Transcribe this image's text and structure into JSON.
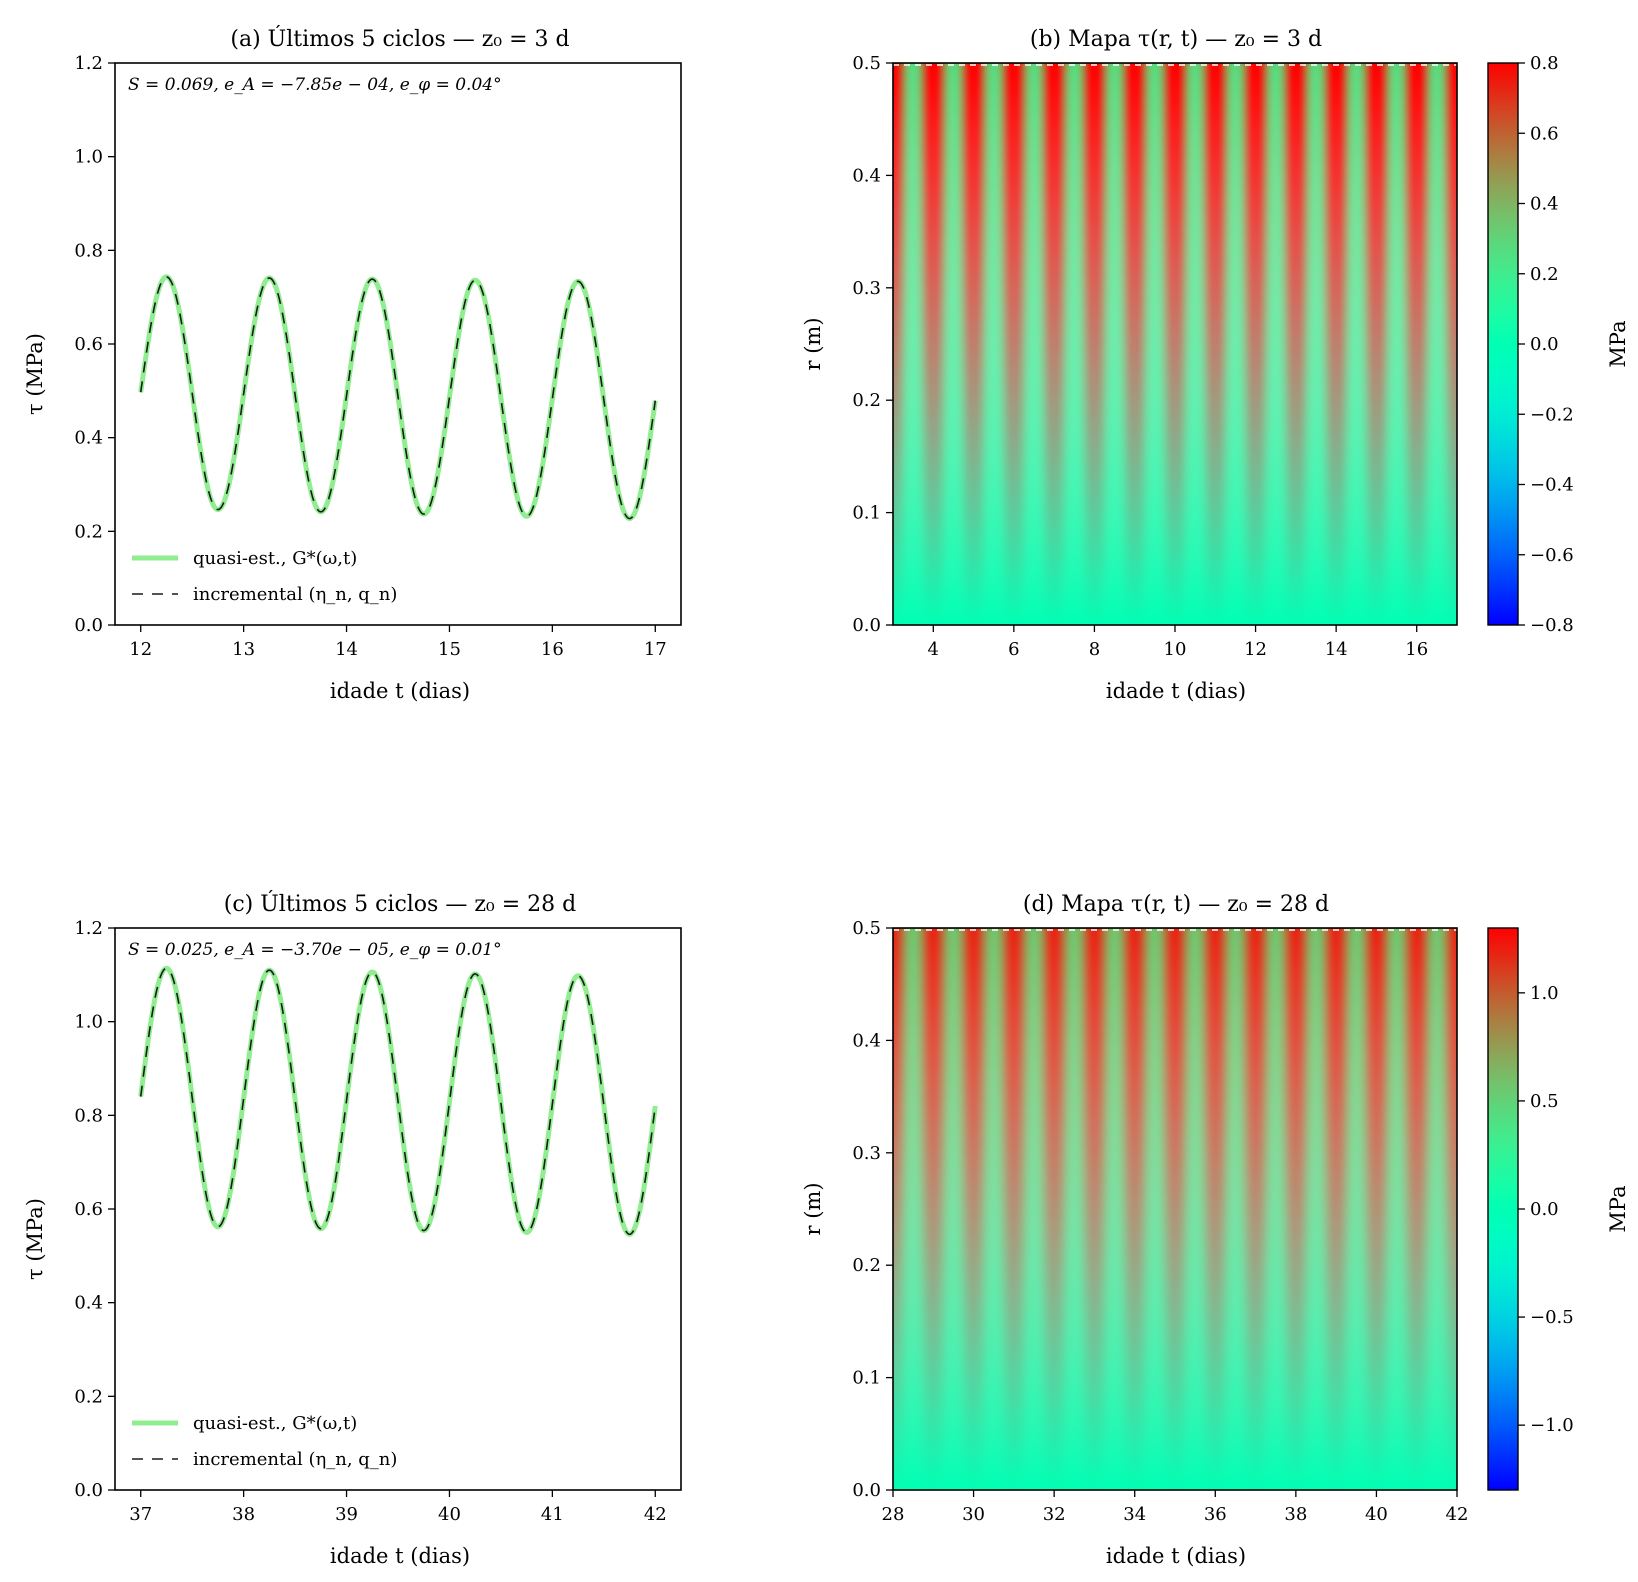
{
  "chart_data": [
    {
      "id": "a",
      "type": "line",
      "title": "(a) Últimos 5 ciclos — z₀ = 3 d",
      "xlabel": "idade t (dias)",
      "ylabel": "τ (MPa)",
      "xlim": [
        11.75,
        17.25
      ],
      "ylim": [
        0.0,
        1.2
      ],
      "xticks": [
        12,
        13,
        14,
        15,
        16,
        17
      ],
      "yticks": [
        0.0,
        0.2,
        0.4,
        0.6,
        0.8,
        1.0,
        1.2
      ],
      "annotation": "S = 0.069, e_A = −7.85e − 04, e_φ = 0.04°",
      "legend_position": "lower-left",
      "signal": {
        "t_start": 12,
        "t_end": 17,
        "period": 1,
        "peak_t": 12.25,
        "amp_start": 0.247,
        "amp_end": 0.253,
        "mean_start": 0.497,
        "mean_end": 0.479
      },
      "series": [
        {
          "name": "quasi-est., G*(ω,t)",
          "color": "#90ee90",
          "style": "solid"
        },
        {
          "name": "incremental (η_n, q_n)",
          "color": "#1a1a1a",
          "style": "dashed"
        }
      ],
      "peaks": [
        [
          12.25,
          0.745
        ],
        [
          13.25,
          0.742
        ],
        [
          14.25,
          0.74
        ],
        [
          15.25,
          0.736
        ],
        [
          16.25,
          0.732
        ]
      ],
      "troughs": [
        [
          12.75,
          0.25
        ],
        [
          13.75,
          0.245
        ],
        [
          14.75,
          0.238
        ],
        [
          15.75,
          0.232
        ],
        [
          16.75,
          0.226
        ]
      ],
      "endpoints": [
        [
          12,
          0.52
        ],
        [
          17,
          0.48
        ]
      ]
    },
    {
      "id": "b",
      "type": "heatmap",
      "title": "(b) Mapa τ(r, t) — z₀ = 3 d",
      "xlabel": "idade t (dias)",
      "ylabel": "r (m)",
      "xlim": [
        3,
        17
      ],
      "ylim": [
        0.0,
        0.5
      ],
      "xticks": [
        4,
        6,
        8,
        10,
        12,
        14,
        16
      ],
      "yticks": [
        0.0,
        0.1,
        0.2,
        0.3,
        0.4,
        0.5
      ],
      "colorbar": {
        "label": "MPa",
        "range": [
          -0.8,
          0.8
        ],
        "ticks": [
          -0.8,
          -0.6,
          -0.4,
          -0.2,
          0.0,
          0.2,
          0.4,
          0.6,
          0.8
        ],
        "colormap": "rainbow"
      },
      "field": {
        "t_start": 3,
        "t_end": 17,
        "period": 1,
        "mean_at_surface": 0.55,
        "amp_at_surface": 0.27,
        "surface_radius": 0.5
      },
      "reference_line": {
        "r": 0.5,
        "style": "dashed",
        "color": "#ffffff"
      }
    },
    {
      "id": "c",
      "type": "line",
      "title": "(c) Últimos 5 ciclos — z₀ = 28 d",
      "xlabel": "idade t (dias)",
      "ylabel": "τ (MPa)",
      "xlim": [
        36.75,
        42.25
      ],
      "ylim": [
        0.0,
        1.2
      ],
      "xticks": [
        37,
        38,
        39,
        40,
        41,
        42
      ],
      "yticks": [
        0.0,
        0.2,
        0.4,
        0.6,
        0.8,
        1.0,
        1.2
      ],
      "annotation": "S = 0.025, e_A = −3.70e − 05, e_φ = 0.01°",
      "legend_position": "lower-left",
      "signal": {
        "t_start": 37,
        "t_end": 42,
        "period": 1,
        "peak_t": 37.25,
        "amp_start": 0.275,
        "amp_end": 0.275,
        "mean_start": 0.84,
        "mean_end": 0.82
      },
      "series": [
        {
          "name": "quasi-est., G*(ω,t)",
          "color": "#90ee90",
          "style": "solid"
        },
        {
          "name": "incremental (η_n, q_n)",
          "color": "#1a1a1a",
          "style": "dashed"
        }
      ],
      "peaks": [
        [
          37.25,
          1.115
        ],
        [
          38.25,
          1.11
        ],
        [
          39.25,
          1.105
        ],
        [
          40.25,
          1.1
        ],
        [
          41.25,
          1.095
        ]
      ],
      "troughs": [
        [
          37.75,
          0.565
        ],
        [
          38.75,
          0.56
        ],
        [
          39.75,
          0.555
        ],
        [
          40.75,
          0.55
        ],
        [
          41.75,
          0.545
        ]
      ],
      "endpoints": [
        [
          37,
          0.86
        ],
        [
          42,
          0.82
        ]
      ]
    },
    {
      "id": "d",
      "type": "heatmap",
      "title": "(d) Mapa τ(r, t) — z₀ = 28 d",
      "xlabel": "idade t (dias)",
      "ylabel": "r (m)",
      "xlim": [
        28,
        42
      ],
      "ylim": [
        0.0,
        0.5
      ],
      "xticks": [
        28,
        30,
        32,
        34,
        36,
        38,
        40,
        42
      ],
      "yticks": [
        0.0,
        0.1,
        0.2,
        0.3,
        0.4,
        0.5
      ],
      "colorbar": {
        "label": "MPa",
        "range": [
          -1.3,
          1.3
        ],
        "ticks": [
          -1.0,
          -0.5,
          0.0,
          0.5,
          1.0
        ],
        "colormap": "rainbow"
      },
      "field": {
        "t_start": 28,
        "t_end": 42,
        "period": 1,
        "mean_at_surface": 0.88,
        "amp_at_surface": 0.3,
        "surface_radius": 0.5
      },
      "reference_line": {
        "r": 0.5,
        "style": "dashed",
        "color": "#ffffff"
      }
    }
  ]
}
